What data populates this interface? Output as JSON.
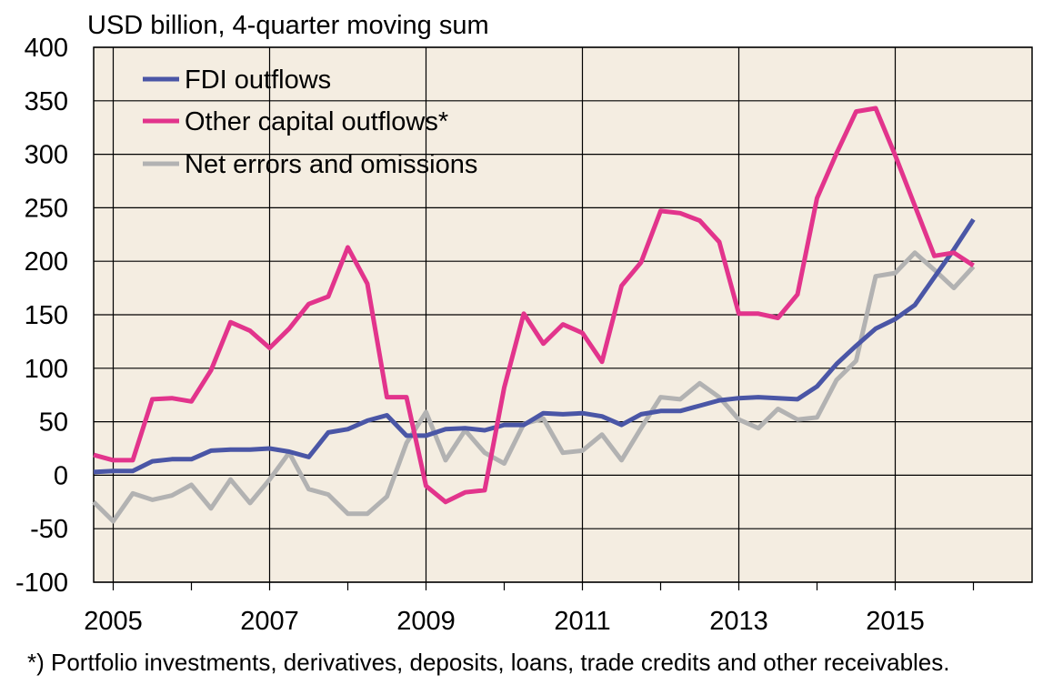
{
  "chart_data": {
    "type": "line",
    "unit_label": "USD billion, 4-quarter moving sum",
    "footnote": "*) Portfolio investments, derivatives, deposits, loans, trade credits and other receivables.",
    "ylim": [
      -100,
      400
    ],
    "y_ticks": [
      -100,
      -50,
      0,
      50,
      100,
      150,
      200,
      250,
      300,
      350,
      400
    ],
    "x_range": [
      2004.75,
      2016.75
    ],
    "x_ticks": [
      2005,
      2007,
      2009,
      2011,
      2013,
      2015
    ],
    "x_tick_labels": [
      "2005",
      "2007",
      "2009",
      "2011",
      "2013",
      "2015"
    ],
    "grid": true,
    "legend_position": "top-left",
    "plot_background": "#f4ede1",
    "x": [
      "2004Q4",
      "2005Q1",
      "2005Q2",
      "2005Q3",
      "2005Q4",
      "2006Q1",
      "2006Q2",
      "2006Q3",
      "2006Q4",
      "2007Q1",
      "2007Q2",
      "2007Q3",
      "2007Q4",
      "2008Q1",
      "2008Q2",
      "2008Q3",
      "2008Q4",
      "2009Q1",
      "2009Q2",
      "2009Q3",
      "2009Q4",
      "2010Q1",
      "2010Q2",
      "2010Q3",
      "2010Q4",
      "2011Q1",
      "2011Q2",
      "2011Q3",
      "2011Q4",
      "2012Q1",
      "2012Q2",
      "2012Q3",
      "2012Q4",
      "2013Q1",
      "2013Q2",
      "2013Q3",
      "2013Q4",
      "2014Q1",
      "2014Q2",
      "2014Q3",
      "2014Q4",
      "2015Q1",
      "2015Q2",
      "2015Q3",
      "2015Q4",
      "2016Q1",
      "2016Q2"
    ],
    "series": [
      {
        "name": "FDI outflows",
        "color": "#4a56a6",
        "values": [
          3,
          4,
          4,
          13,
          15,
          15,
          23,
          24,
          24,
          25,
          22,
          17,
          40,
          43,
          51,
          56,
          37,
          37,
          43,
          44,
          42,
          47,
          47,
          58,
          57,
          58,
          55,
          47,
          57,
          60,
          60,
          65,
          70,
          72,
          73,
          72,
          71,
          83,
          104,
          121,
          137,
          146,
          159,
          185,
          211,
          239,
          null
        ]
      },
      {
        "name": "Other capital outflows*",
        "color": "#e2348c",
        "values": [
          19,
          14,
          14,
          71,
          72,
          69,
          98,
          143,
          135,
          119,
          137,
          160,
          167,
          213,
          179,
          73,
          73,
          -10,
          -25,
          -16,
          -14,
          82,
          151,
          123,
          141,
          133,
          106,
          177,
          199,
          247,
          245,
          238,
          218,
          151,
          151,
          147,
          169,
          259,
          301,
          340,
          343,
          299,
          252,
          205,
          208,
          196,
          null
        ]
      },
      {
        "name": "Net errors and omissions",
        "color": "#b2b2b2",
        "values": [
          -25,
          -43,
          -17,
          -23,
          -19,
          -9,
          -31,
          -4,
          -26,
          -4,
          21,
          -13,
          -18,
          -36,
          -36,
          -20,
          30,
          59,
          14,
          42,
          21,
          11,
          48,
          53,
          21,
          23,
          38,
          14,
          44,
          73,
          71,
          86,
          73,
          52,
          44,
          62,
          52,
          54,
          89,
          107,
          186,
          189,
          208,
          192,
          175,
          195,
          null
        ]
      }
    ]
  }
}
